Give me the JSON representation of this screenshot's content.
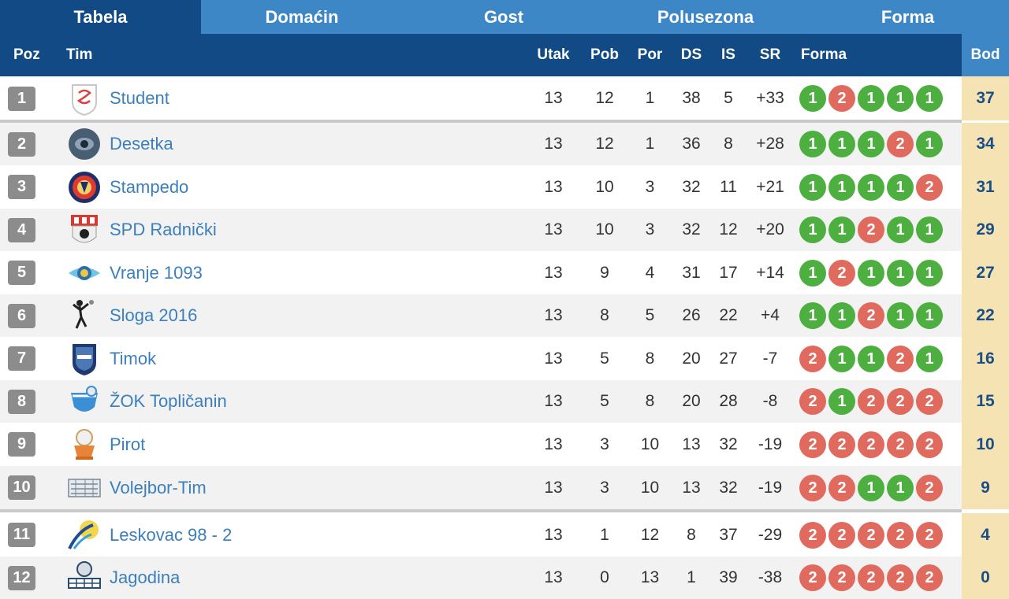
{
  "tabs": [
    {
      "label": "Tabela",
      "active": true
    },
    {
      "label": "Domaćin",
      "active": false
    },
    {
      "label": "Gost",
      "active": false
    },
    {
      "label": "Polusezona",
      "active": false
    },
    {
      "label": "Forma",
      "active": false
    }
  ],
  "columns": {
    "poz": "Poz",
    "tim": "Tim",
    "utak": "Utak",
    "pob": "Pob",
    "por": "Por",
    "ds": "DS",
    "is": "IS",
    "sr": "SR",
    "forma": "Forma",
    "bod": "Bod"
  },
  "colors": {
    "header_dark": "#114a85",
    "header_light": "#3d87c6",
    "win": "#4caf3f",
    "loss": "#e06a5e",
    "points_bg": "#f6e3b4",
    "team_link": "#3b7fbd"
  },
  "rows": [
    {
      "pos": "1",
      "team": "Student",
      "utak": "13",
      "pob": "12",
      "por": "1",
      "ds": "38",
      "is": "5",
      "sr": "+33",
      "form": [
        "1",
        "2",
        "1",
        "1",
        "1"
      ],
      "bod": "37",
      "logo": "student-logo-icon"
    },
    {
      "pos": "2",
      "team": "Desetka",
      "utak": "13",
      "pob": "12",
      "por": "1",
      "ds": "36",
      "is": "8",
      "sr": "+28",
      "form": [
        "1",
        "1",
        "1",
        "2",
        "1"
      ],
      "bod": "34",
      "logo": "desetka-logo-icon"
    },
    {
      "pos": "3",
      "team": "Stampedo",
      "utak": "13",
      "pob": "10",
      "por": "3",
      "ds": "32",
      "is": "11",
      "sr": "+21",
      "form": [
        "1",
        "1",
        "1",
        "1",
        "2"
      ],
      "bod": "31",
      "logo": "stampedo-logo-icon"
    },
    {
      "pos": "4",
      "team": "SPD Radnički",
      "utak": "13",
      "pob": "10",
      "por": "3",
      "ds": "32",
      "is": "12",
      "sr": "+20",
      "form": [
        "1",
        "1",
        "2",
        "1",
        "1"
      ],
      "bod": "29",
      "logo": "radnicki-logo-icon"
    },
    {
      "pos": "5",
      "team": "Vranje 1093",
      "utak": "13",
      "pob": "9",
      "por": "4",
      "ds": "31",
      "is": "17",
      "sr": "+14",
      "form": [
        "1",
        "2",
        "1",
        "1",
        "1"
      ],
      "bod": "27",
      "logo": "vranje-logo-icon"
    },
    {
      "pos": "6",
      "team": "Sloga 2016",
      "utak": "13",
      "pob": "8",
      "por": "5",
      "ds": "26",
      "is": "22",
      "sr": "+4",
      "form": [
        "1",
        "1",
        "2",
        "1",
        "1"
      ],
      "bod": "22",
      "logo": "sloga-logo-icon"
    },
    {
      "pos": "7",
      "team": "Timok",
      "utak": "13",
      "pob": "5",
      "por": "8",
      "ds": "20",
      "is": "27",
      "sr": "-7",
      "form": [
        "2",
        "1",
        "1",
        "2",
        "1"
      ],
      "bod": "16",
      "logo": "timok-logo-icon"
    },
    {
      "pos": "8",
      "team": "ŽOK Topličanin",
      "utak": "13",
      "pob": "5",
      "por": "8",
      "ds": "20",
      "is": "28",
      "sr": "-8",
      "form": [
        "2",
        "1",
        "2",
        "2",
        "2"
      ],
      "bod": "15",
      "logo": "toplicanin-logo-icon"
    },
    {
      "pos": "9",
      "team": "Pirot",
      "utak": "13",
      "pob": "3",
      "por": "10",
      "ds": "13",
      "is": "32",
      "sr": "-19",
      "form": [
        "2",
        "2",
        "2",
        "2",
        "2"
      ],
      "bod": "10",
      "logo": "pirot-logo-icon"
    },
    {
      "pos": "10",
      "team": "Volejbor-Tim",
      "utak": "13",
      "pob": "3",
      "por": "10",
      "ds": "13",
      "is": "32",
      "sr": "-19",
      "form": [
        "2",
        "2",
        "1",
        "1",
        "2"
      ],
      "bod": "9",
      "logo": "volejbor-logo-icon"
    },
    {
      "pos": "11",
      "team": "Leskovac 98 - 2",
      "utak": "13",
      "pob": "1",
      "por": "12",
      "ds": "8",
      "is": "37",
      "sr": "-29",
      "form": [
        "2",
        "2",
        "2",
        "2",
        "2"
      ],
      "bod": "4",
      "logo": "leskovac-logo-icon"
    },
    {
      "pos": "12",
      "team": "Jagodina",
      "utak": "13",
      "pob": "0",
      "por": "13",
      "ds": "1",
      "is": "39",
      "sr": "-38",
      "form": [
        "2",
        "2",
        "2",
        "2",
        "2"
      ],
      "bod": "0",
      "logo": "jagodina-logo-icon"
    }
  ]
}
